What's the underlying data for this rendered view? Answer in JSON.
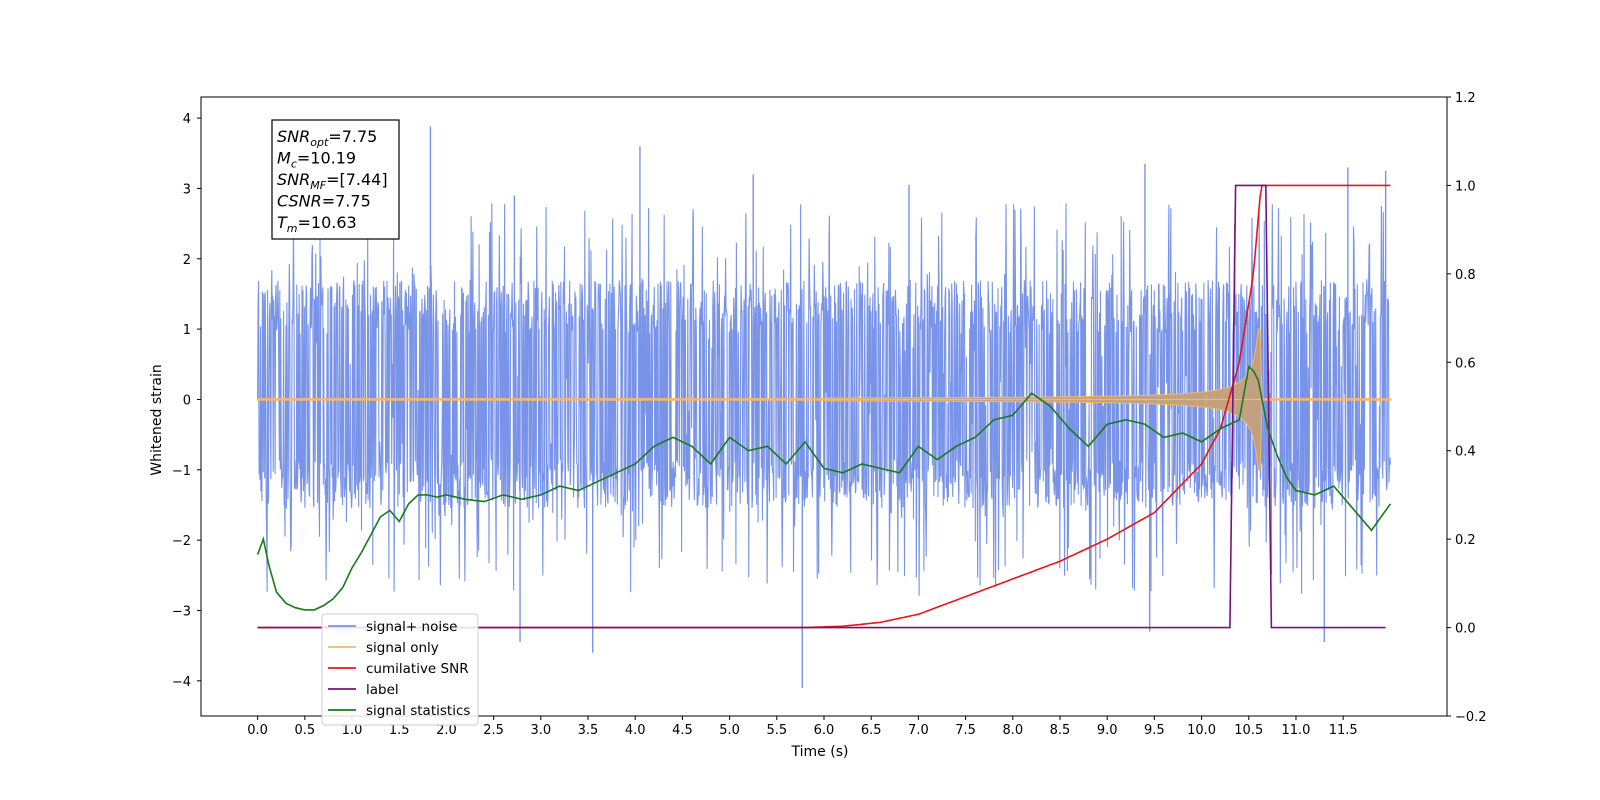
{
  "chart_data": {
    "type": "line",
    "xlabel": "Time (s)",
    "ylabel": "Whitened strain",
    "xlim": [
      -0.6,
      12.6
    ],
    "ylim": [
      -4.5,
      4.3
    ],
    "y2lim": [
      -0.2,
      1.2
    ],
    "grid": false,
    "legend_position": "lower-left",
    "x_ticks": [
      "0.0",
      "0.5",
      "1.0",
      "1.5",
      "2.0",
      "2.5",
      "3.0",
      "3.5",
      "4.0",
      "4.5",
      "5.0",
      "5.5",
      "6.0",
      "6.5",
      "7.0",
      "7.5",
      "8.0",
      "8.5",
      "9.0",
      "9.5",
      "10.0",
      "10.5",
      "11.0",
      "11.5"
    ],
    "y_ticks": [
      "4",
      "3",
      "2",
      "1",
      "0",
      "−1",
      "−2",
      "−3",
      "−4"
    ],
    "y2_ticks": [
      "1.2",
      "1.0",
      "0.8",
      "0.6",
      "0.4",
      "0.2",
      "0.0",
      "−0.2"
    ],
    "annotation": {
      "lines": [
        {
          "base": "SNR",
          "sub": "opt",
          "rest": "=7.75"
        },
        {
          "base": "M",
          "sub": "c",
          "rest": "=10.19"
        },
        {
          "base": "SNR",
          "sub": "MF",
          "rest": "=[7.44]"
        },
        {
          "base": "CSNR",
          "sub": "",
          "rest": "=7.75"
        },
        {
          "base": "T",
          "sub": "m",
          "rest": "=10.63"
        }
      ]
    },
    "series": [
      {
        "name": "signal+ noise",
        "axis": "left",
        "color": "#7893e8",
        "x_range": [
          0.0,
          12.0
        ],
        "noise_band": [
          -1.55,
          1.7
        ],
        "spikes_up": [
          [
            1.83,
            3.88
          ],
          [
            2.72,
            2.9
          ],
          [
            4.05,
            3.6
          ],
          [
            5.25,
            3.2
          ],
          [
            6.9,
            3.05
          ],
          [
            9.4,
            3.35
          ],
          [
            11.55,
            3.3
          ],
          [
            11.95,
            3.25
          ]
        ],
        "spikes_down": [
          [
            2.78,
            -3.45
          ],
          [
            3.55,
            -3.6
          ],
          [
            5.77,
            -4.1
          ],
          [
            9.45,
            -3.3
          ],
          [
            11.3,
            -3.45
          ]
        ]
      },
      {
        "name": "signal only",
        "axis": "left",
        "color": "#f5b968",
        "chirp_start": 6.0,
        "merger": 10.63,
        "peak_amplitude": 1.0
      },
      {
        "name": "cumilative SNR",
        "axis": "right",
        "color": "#e8141a",
        "x": [
          0.0,
          5.8,
          6.2,
          6.6,
          7.0,
          7.5,
          8.0,
          8.5,
          9.0,
          9.5,
          10.0,
          10.2,
          10.4,
          10.55,
          10.63,
          12.0
        ],
        "y": [
          0.0,
          0.0,
          0.003,
          0.012,
          0.03,
          0.07,
          0.11,
          0.15,
          0.2,
          0.26,
          0.37,
          0.45,
          0.6,
          0.8,
          1.0,
          1.0
        ]
      },
      {
        "name": "label",
        "axis": "right",
        "color": "#77127b",
        "x": [
          0.0,
          10.3,
          10.36,
          10.68,
          10.74,
          11.95
        ],
        "y": [
          0.0,
          0.0,
          1.0,
          1.0,
          0.0,
          0.0
        ]
      },
      {
        "name": "signal statistics",
        "axis": "right",
        "color": "#1a7a1a",
        "x": [
          0.0,
          0.06,
          0.12,
          0.2,
          0.3,
          0.4,
          0.5,
          0.6,
          0.7,
          0.8,
          0.9,
          1.0,
          1.1,
          1.2,
          1.3,
          1.4,
          1.5,
          1.6,
          1.7,
          1.8,
          1.9,
          2.0,
          2.2,
          2.4,
          2.6,
          2.8,
          3.0,
          3.2,
          3.4,
          3.6,
          3.8,
          4.0,
          4.2,
          4.4,
          4.6,
          4.8,
          5.0,
          5.2,
          5.4,
          5.6,
          5.8,
          6.0,
          6.2,
          6.4,
          6.6,
          6.8,
          7.0,
          7.2,
          7.4,
          7.6,
          7.8,
          8.0,
          8.2,
          8.4,
          8.6,
          8.8,
          9.0,
          9.2,
          9.4,
          9.6,
          9.8,
          10.0,
          10.2,
          10.4,
          10.5,
          10.55,
          10.6,
          10.7,
          10.8,
          10.9,
          11.0,
          11.2,
          11.4,
          11.6,
          11.8,
          12.0
        ],
        "y": [
          0.165,
          0.2,
          0.14,
          0.08,
          0.055,
          0.045,
          0.04,
          0.04,
          0.05,
          0.065,
          0.09,
          0.135,
          0.17,
          0.21,
          0.25,
          0.265,
          0.24,
          0.28,
          0.3,
          0.3,
          0.295,
          0.3,
          0.29,
          0.285,
          0.3,
          0.29,
          0.3,
          0.32,
          0.31,
          0.33,
          0.35,
          0.37,
          0.41,
          0.43,
          0.41,
          0.37,
          0.43,
          0.4,
          0.41,
          0.37,
          0.42,
          0.36,
          0.35,
          0.37,
          0.36,
          0.35,
          0.41,
          0.38,
          0.41,
          0.43,
          0.47,
          0.48,
          0.53,
          0.5,
          0.45,
          0.41,
          0.46,
          0.47,
          0.46,
          0.43,
          0.44,
          0.42,
          0.45,
          0.47,
          0.59,
          0.58,
          0.56,
          0.45,
          0.39,
          0.34,
          0.31,
          0.3,
          0.32,
          0.27,
          0.22,
          0.28
        ]
      }
    ]
  }
}
